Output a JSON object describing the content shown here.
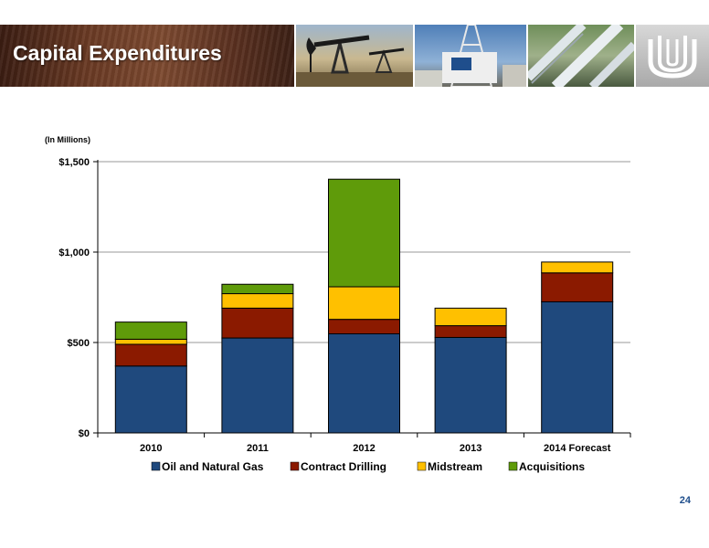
{
  "header": {
    "title": "Capital Expenditures"
  },
  "page_number": "24",
  "chart_data": {
    "type": "bar",
    "stacked": true,
    "units_note": "(In Millions)",
    "categories": [
      "2010",
      "2011",
      "2012",
      "2013",
      "2014 Forecast"
    ],
    "series": [
      {
        "name": "Oil and Natural Gas",
        "color": "#1f497d",
        "values": [
          370,
          525,
          548,
          528,
          725
        ]
      },
      {
        "name": "Contract Drilling",
        "color": "#8b1a00",
        "values": [
          120,
          165,
          80,
          65,
          160
        ]
      },
      {
        "name": "Midstream",
        "color": "#ffc000",
        "values": [
          28,
          80,
          180,
          97,
          60
        ]
      },
      {
        "name": "Acquisitions",
        "color": "#5f9b0a",
        "values": [
          95,
          52,
          595,
          0,
          0
        ]
      }
    ],
    "y_ticks": [
      0,
      500,
      1000,
      1500
    ],
    "y_tick_labels": [
      "$0",
      "$500",
      "$1,000",
      "$1,500"
    ],
    "ylim": [
      0,
      1500
    ],
    "grid": true,
    "legend_position": "bottom"
  }
}
